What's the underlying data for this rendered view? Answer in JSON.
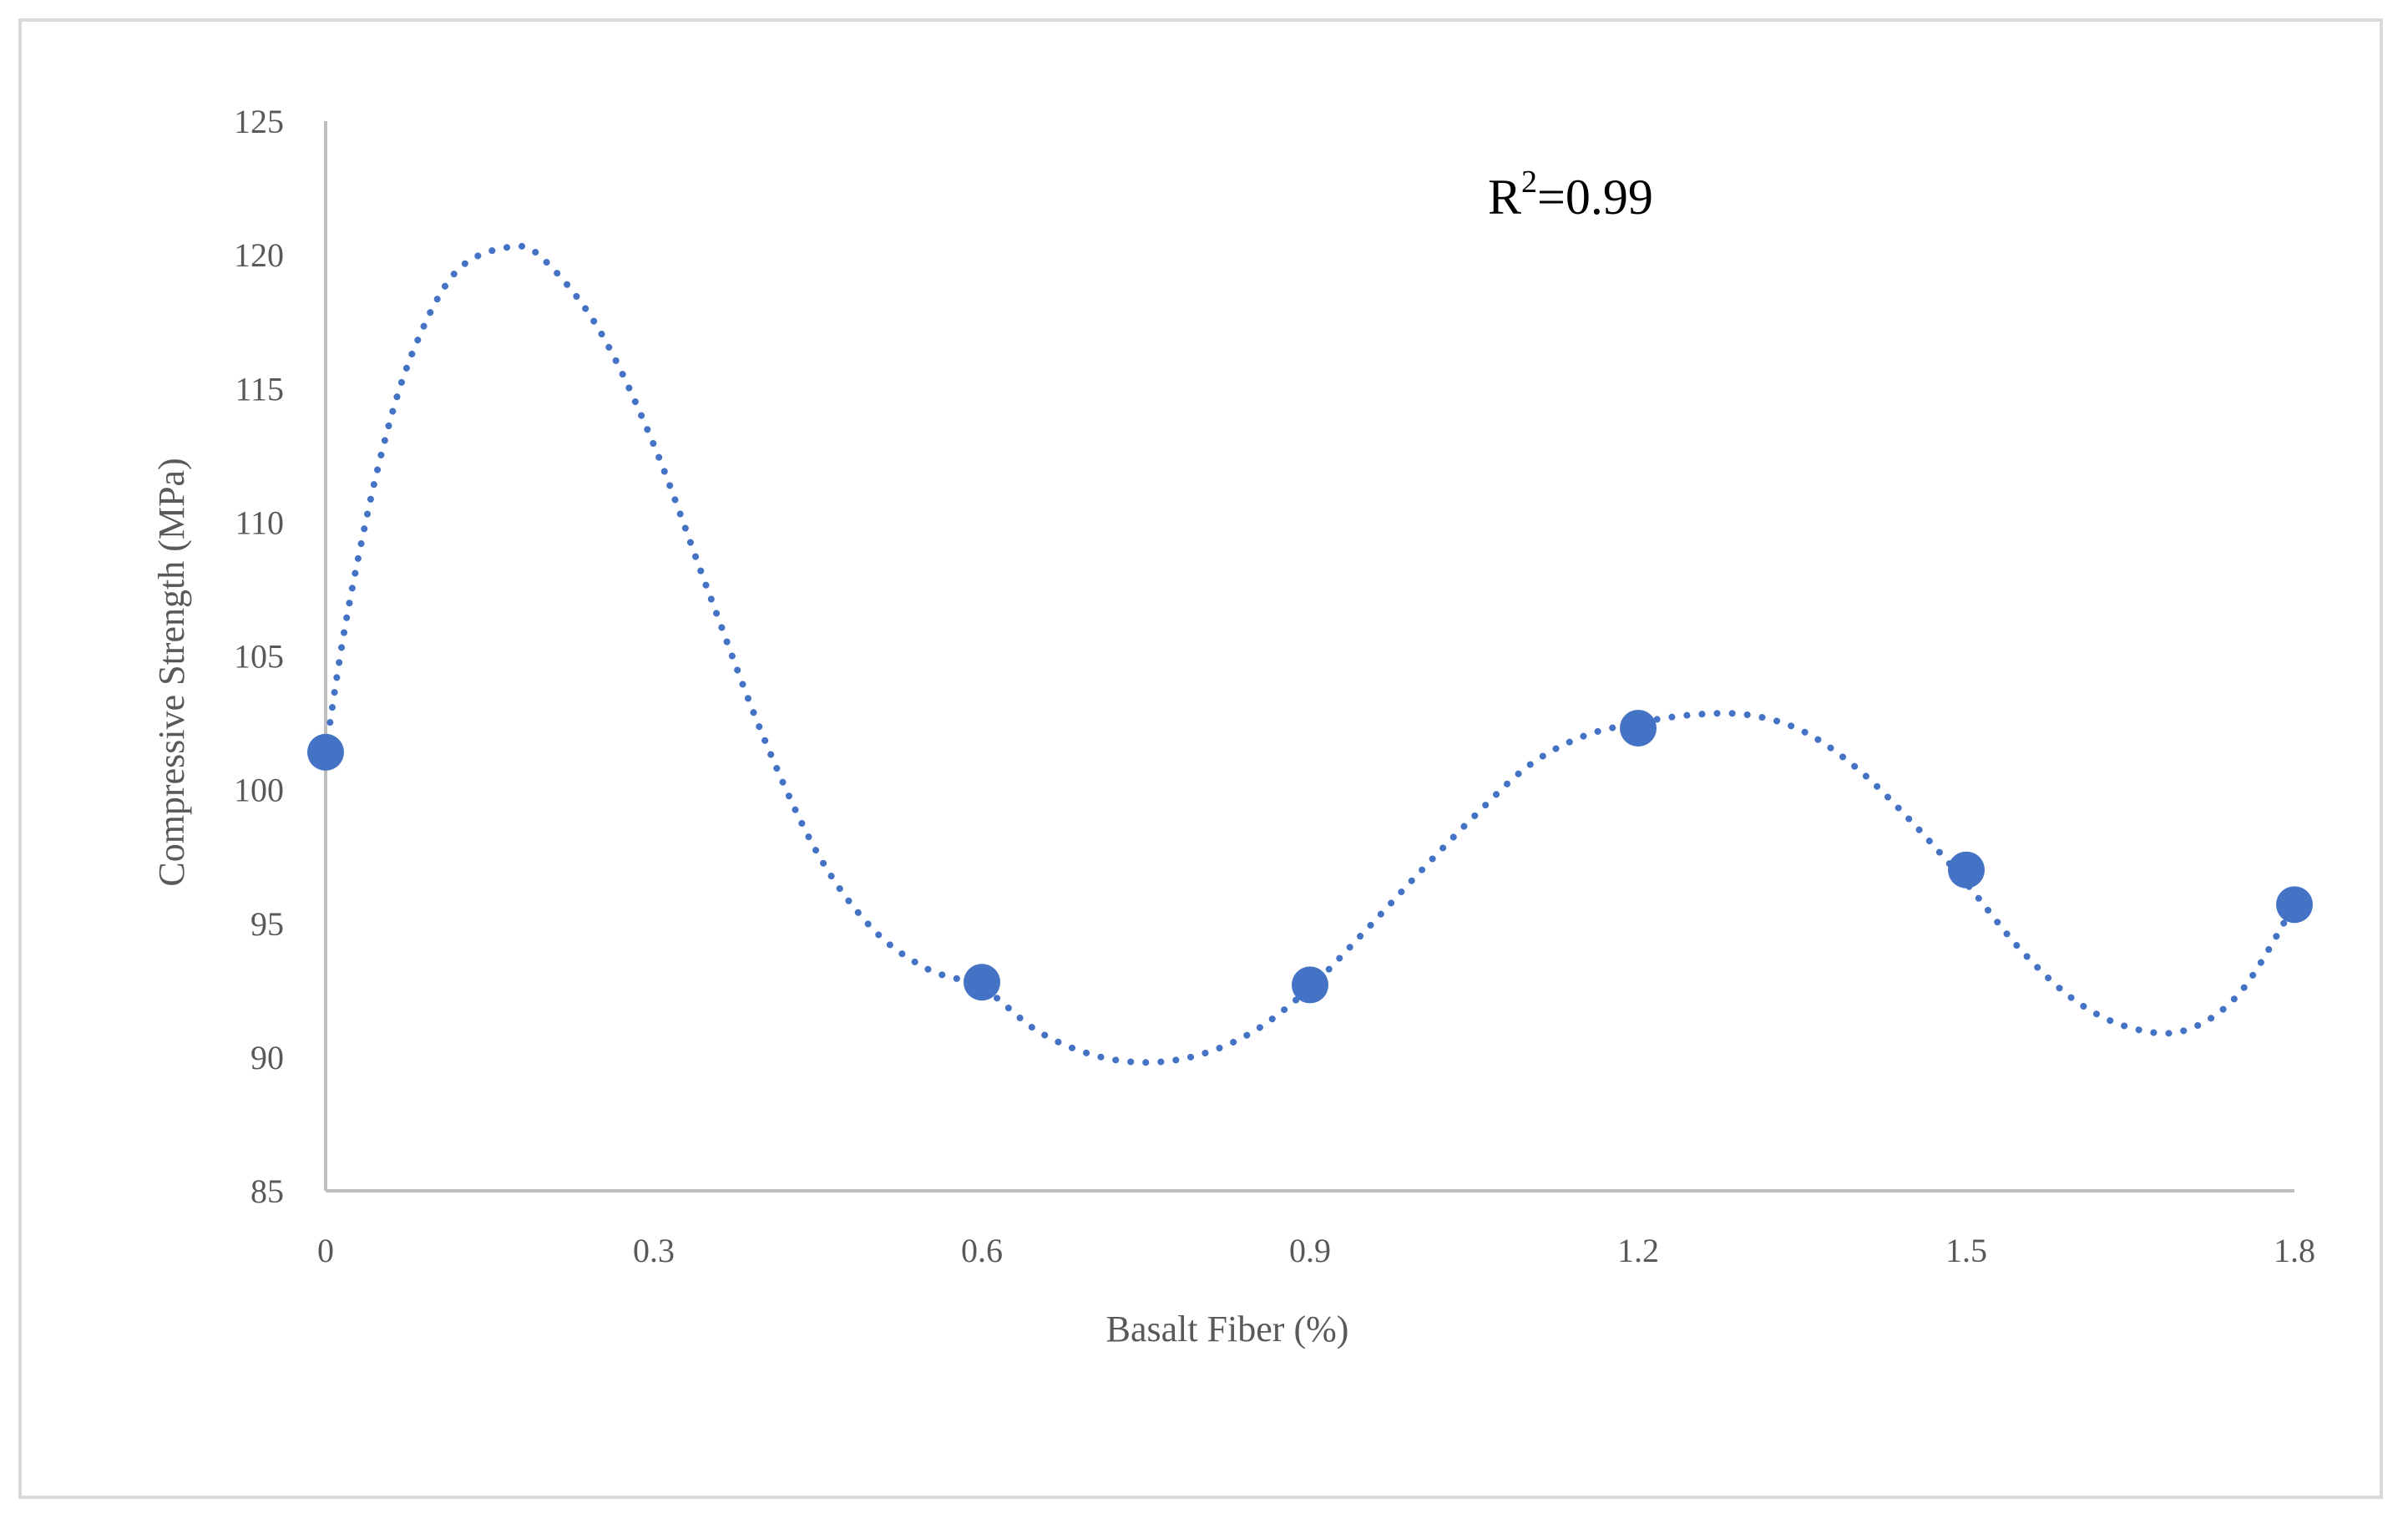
{
  "colors": {
    "series": "#4472c4",
    "axis": "#bfbfbf",
    "frame": "#d9d9d9",
    "text": "#595959"
  },
  "chart_data": {
    "type": "scatter",
    "title": "",
    "xlabel": "Basalt Fiber (%)",
    "ylabel": "Compressive Strength (MPa)",
    "xlim": [
      0,
      1.8
    ],
    "ylim": [
      85,
      125
    ],
    "xticks": [
      0,
      0.3,
      0.6,
      0.9,
      1.2,
      1.5,
      1.8
    ],
    "xtick_labels": [
      "0",
      "0.3",
      "0.6",
      "0.9",
      "1.2",
      "1.5",
      "1.8"
    ],
    "yticks": [
      85,
      90,
      95,
      100,
      105,
      110,
      115,
      120,
      125
    ],
    "ytick_labels": [
      "85",
      "90",
      "95",
      "100",
      "105",
      "110",
      "115",
      "120",
      "125"
    ],
    "grid": false,
    "series": [
      {
        "x": [
          0,
          0.6,
          0.9,
          1.2,
          1.5,
          1.8
        ],
        "y": [
          101.4,
          92.8,
          92.7,
          102.3,
          97.0,
          95.7
        ]
      }
    ],
    "trendline": {
      "style": "dotted",
      "x": [
        0,
        0.02,
        0.05,
        0.08,
        0.12,
        0.17,
        0.2,
        0.25,
        0.3,
        0.35,
        0.4,
        0.45,
        0.5,
        0.55,
        0.6,
        0.65,
        0.7,
        0.75,
        0.8,
        0.85,
        0.9,
        0.95,
        1.0,
        1.05,
        1.1,
        1.15,
        1.2,
        1.25,
        1.3,
        1.35,
        1.4,
        1.45,
        1.5,
        1.55,
        1.6,
        1.65,
        1.7,
        1.75,
        1.8
      ],
      "y": [
        101.4,
        106.6,
        112.4,
        116.4,
        119.4,
        120.3,
        119.8,
        117.2,
        112.9,
        107.4,
        102.0,
        97.6,
        94.8,
        93.3,
        92.6,
        91.0,
        90.1,
        89.8,
        90.1,
        91.0,
        92.6,
        94.7,
        96.9,
        99.0,
        100.9,
        102.0,
        102.5,
        102.8,
        102.8,
        102.2,
        100.8,
        98.8,
        96.5,
        94.0,
        92.1,
        91.1,
        91.0,
        92.4,
        95.7
      ]
    },
    "annotation": {
      "base": "R",
      "sup": "2",
      "rest": "=0.99"
    }
  }
}
